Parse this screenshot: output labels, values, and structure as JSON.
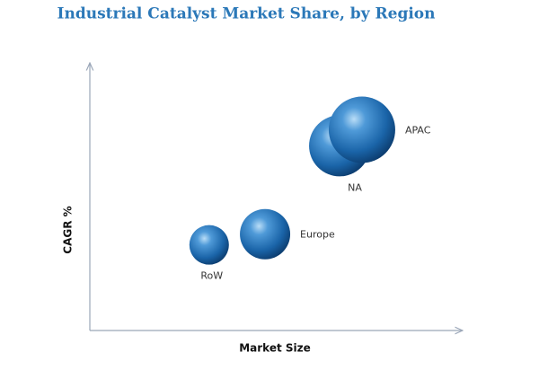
{
  "chart_data": {
    "type": "bubble",
    "title": "Industrial Catalyst Market Share, by Region",
    "x_label": "Market Size",
    "y_label": "CAGR %",
    "labels": [
      "RoW",
      "Europe",
      "NA",
      "APAC"
    ],
    "x": [
      32,
      47,
      67,
      73
    ],
    "values": [
      32,
      36,
      69,
      75
    ],
    "sizes": [
      22,
      28,
      34,
      37
    ],
    "color": "#1a64a8",
    "xlim": [
      0,
      100
    ],
    "ylim": [
      0,
      100
    ]
  }
}
